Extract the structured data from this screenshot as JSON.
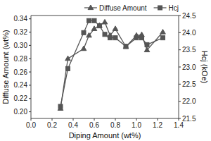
{
  "chart_data": {
    "type": "line",
    "xlabel": "Diping Amount (wt%)",
    "ylabel": "Diffuse Amount (wt%)",
    "y2label": "Hcj (kOe)",
    "x": [
      0.28,
      0.35,
      0.5,
      0.55,
      0.6,
      0.65,
      0.7,
      0.75,
      0.8,
      0.9,
      1.0,
      1.05,
      1.1,
      1.25
    ],
    "series": [
      {
        "name": "Diffuse Amount",
        "color": "#555555",
        "marker": "triangle",
        "values": [
          0.205,
          0.28,
          0.295,
          0.315,
          0.325,
          0.33,
          0.335,
          0.315,
          0.325,
          0.298,
          0.315,
          0.316,
          0.293,
          0.32
        ]
      },
      {
        "name": "Hcj",
        "color": "#555555",
        "marker": "square",
        "axis": "y2",
        "values": [
          21.85,
          22.95,
          24.0,
          24.35,
          24.35,
          24.2,
          23.95,
          23.85,
          23.85,
          23.6,
          23.85,
          23.85,
          23.65,
          23.85
        ]
      }
    ],
    "xlim": [
      0.0,
      1.4
    ],
    "xticks": [
      {
        "value": 0.0,
        "label": "0.0"
      },
      0.2,
      0.4,
      0.6,
      0.8,
      {
        "value": 1.0,
        "label": "1.0"
      },
      1.2,
      1.4
    ],
    "ylim": [
      0.19,
      0.345
    ],
    "yticks": [
      {
        "value": 0.2,
        "label": "0.20"
      },
      0.22,
      0.24,
      0.26,
      0.28,
      {
        "value": 0.3,
        "label": "0.30"
      },
      0.32,
      0.34
    ],
    "y2lim": [
      21.5,
      24.5
    ],
    "y2ticks": [
      21.5,
      {
        "value": 22.0,
        "label": "22.0"
      },
      22.5,
      {
        "value": 23.0,
        "label": "23.0"
      },
      23.5,
      {
        "value": 24.0,
        "label": "24.0"
      },
      24.5
    ],
    "grid": false,
    "legend": "upper right"
  }
}
